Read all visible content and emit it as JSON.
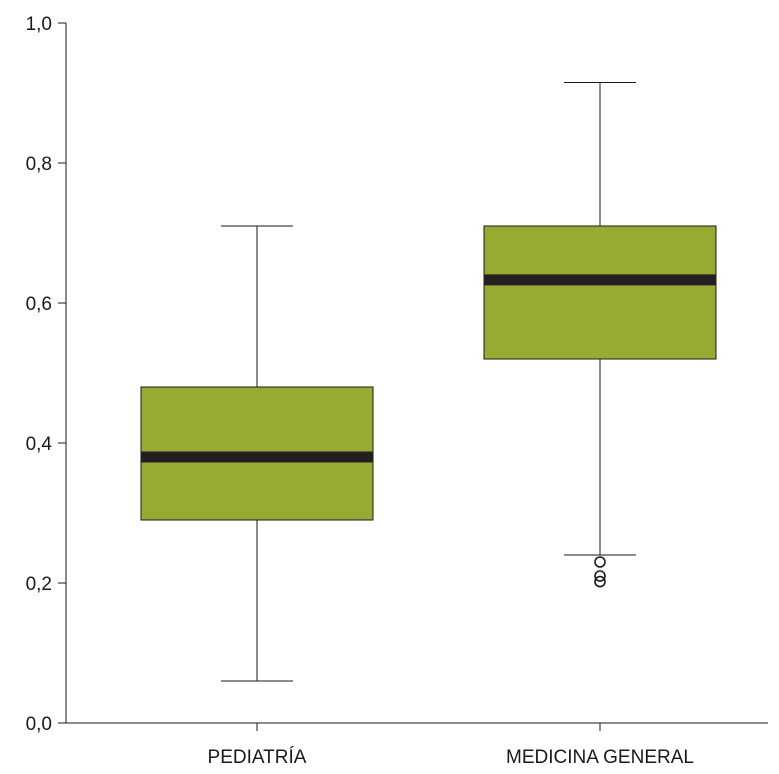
{
  "chart_data": {
    "type": "boxplot",
    "title": "",
    "xlabel": "",
    "ylabel": "",
    "ylim": [
      0.0,
      1.0
    ],
    "yticks": [
      0.0,
      0.2,
      0.4,
      0.6,
      0.8,
      1.0
    ],
    "ytick_labels": [
      "0,0",
      "0,2",
      "0,4",
      "0,6",
      "0,8",
      "1,0"
    ],
    "grid": false,
    "box_color": "#99aa33",
    "median_color": "#231f20",
    "categories": [
      "PEDIATRÍA",
      "MEDICINA GENERAL"
    ],
    "boxes": [
      {
        "category": "PEDIATRÍA",
        "whisker_low": 0.06,
        "q1": 0.29,
        "median": 0.38,
        "q3": 0.48,
        "whisker_high": 0.71,
        "outliers": []
      },
      {
        "category": "MEDICINA GENERAL",
        "whisker_low": 0.24,
        "q1": 0.52,
        "median": 0.633,
        "q3": 0.71,
        "whisker_high": 0.915,
        "outliers": [
          0.23,
          0.21,
          0.202
        ]
      }
    ]
  }
}
